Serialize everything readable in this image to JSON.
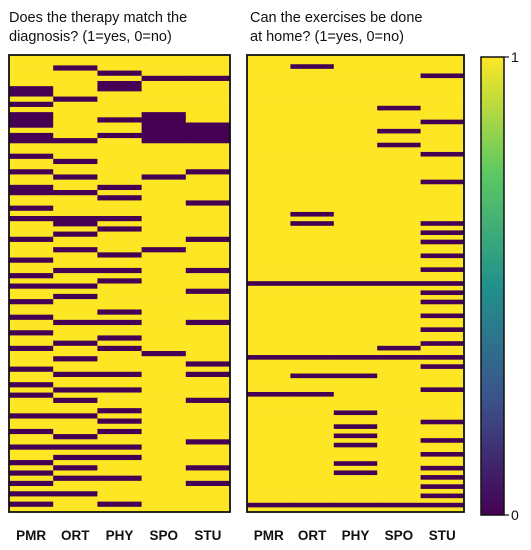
{
  "chart_data": [
    {
      "type": "heatmap",
      "title_lines": [
        "Does the therapy match the",
        "diagnosis? (1=yes, 0=no)"
      ],
      "xlabel": "",
      "ylabel": "",
      "columns": [
        "PMR",
        "ORT",
        "PHY",
        "SPO",
        "STU"
      ],
      "colormap": "viridis",
      "value_range": [
        0,
        1
      ],
      "rows": [
        [
          1,
          1,
          1,
          1,
          1
        ],
        [
          1,
          1,
          1,
          1,
          1
        ],
        [
          1,
          0,
          1,
          1,
          1
        ],
        [
          1,
          1,
          0,
          1,
          1
        ],
        [
          1,
          1,
          1,
          0,
          0
        ],
        [
          1,
          1,
          0,
          1,
          1
        ],
        [
          0,
          1,
          0,
          1,
          1
        ],
        [
          0,
          1,
          1,
          1,
          1
        ],
        [
          1,
          0,
          1,
          1,
          1
        ],
        [
          0,
          1,
          1,
          1,
          1
        ],
        [
          1,
          1,
          1,
          1,
          1
        ],
        [
          0,
          1,
          1,
          0,
          1
        ],
        [
          0,
          1,
          0,
          0,
          1
        ],
        [
          0,
          1,
          1,
          0,
          0
        ],
        [
          1,
          1,
          1,
          0,
          0
        ],
        [
          0,
          1,
          0,
          0,
          0
        ],
        [
          0,
          0,
          1,
          0,
          0
        ],
        [
          1,
          1,
          1,
          1,
          1
        ],
        [
          1,
          1,
          1,
          1,
          1
        ],
        [
          0,
          1,
          1,
          1,
          1
        ],
        [
          1,
          0,
          1,
          1,
          1
        ],
        [
          1,
          1,
          1,
          1,
          1
        ],
        [
          0,
          1,
          1,
          1,
          0
        ],
        [
          1,
          0,
          1,
          0,
          1
        ],
        [
          1,
          1,
          1,
          1,
          1
        ],
        [
          0,
          1,
          0,
          1,
          1
        ],
        [
          0,
          0,
          1,
          1,
          1
        ],
        [
          1,
          1,
          0,
          1,
          1
        ],
        [
          1,
          1,
          1,
          1,
          0
        ],
        [
          0,
          1,
          1,
          1,
          1
        ],
        [
          1,
          1,
          1,
          1,
          1
        ],
        [
          0,
          0,
          0,
          1,
          1
        ],
        [
          1,
          0,
          1,
          1,
          1
        ],
        [
          1,
          1,
          0,
          1,
          1
        ],
        [
          1,
          0,
          1,
          1,
          1
        ],
        [
          0,
          1,
          1,
          1,
          0
        ],
        [
          1,
          1,
          1,
          1,
          1
        ],
        [
          1,
          0,
          1,
          0,
          1
        ],
        [
          1,
          1,
          0,
          1,
          1
        ],
        [
          0,
          1,
          1,
          1,
          1
        ],
        [
          1,
          1,
          1,
          1,
          1
        ],
        [
          1,
          0,
          0,
          1,
          0
        ],
        [
          0,
          1,
          1,
          1,
          1
        ],
        [
          1,
          1,
          0,
          1,
          1
        ],
        [
          0,
          0,
          1,
          1,
          1
        ],
        [
          1,
          1,
          1,
          1,
          0
        ],
        [
          1,
          0,
          1,
          1,
          1
        ],
        [
          0,
          1,
          1,
          1,
          1
        ],
        [
          1,
          1,
          1,
          1,
          1
        ],
        [
          1,
          1,
          0,
          1,
          1
        ],
        [
          0,
          1,
          1,
          1,
          1
        ],
        [
          1,
          0,
          0,
          1,
          0
        ],
        [
          1,
          1,
          1,
          1,
          1
        ],
        [
          0,
          1,
          1,
          1,
          1
        ],
        [
          1,
          1,
          0,
          1,
          1
        ],
        [
          1,
          0,
          1,
          1,
          1
        ],
        [
          0,
          1,
          0,
          1,
          1
        ],
        [
          1,
          1,
          1,
          0,
          1
        ],
        [
          1,
          0,
          1,
          1,
          1
        ],
        [
          1,
          1,
          1,
          1,
          0
        ],
        [
          0,
          1,
          1,
          1,
          1
        ],
        [
          1,
          0,
          0,
          1,
          0
        ],
        [
          1,
          1,
          1,
          1,
          1
        ],
        [
          0,
          1,
          1,
          1,
          1
        ],
        [
          1,
          0,
          0,
          1,
          1
        ],
        [
          0,
          1,
          1,
          1,
          1
        ],
        [
          1,
          0,
          1,
          1,
          0
        ],
        [
          1,
          1,
          1,
          1,
          1
        ],
        [
          1,
          1,
          0,
          1,
          1
        ],
        [
          0,
          0,
          1,
          1,
          1
        ],
        [
          1,
          1,
          0,
          1,
          1
        ],
        [
          1,
          1,
          1,
          1,
          1
        ],
        [
          0,
          1,
          0,
          1,
          1
        ],
        [
          1,
          0,
          1,
          1,
          1
        ],
        [
          1,
          1,
          1,
          1,
          0
        ],
        [
          0,
          0,
          0,
          1,
          1
        ],
        [
          1,
          1,
          1,
          1,
          1
        ],
        [
          1,
          0,
          0,
          1,
          1
        ],
        [
          0,
          1,
          1,
          1,
          1
        ],
        [
          1,
          0,
          1,
          1,
          0
        ],
        [
          0,
          1,
          1,
          1,
          1
        ],
        [
          1,
          0,
          0,
          1,
          1
        ],
        [
          0,
          1,
          1,
          1,
          0
        ],
        [
          1,
          1,
          1,
          1,
          1
        ],
        [
          0,
          0,
          1,
          1,
          1
        ],
        [
          1,
          1,
          1,
          1,
          1
        ],
        [
          0,
          1,
          0,
          1,
          1
        ],
        [
          1,
          1,
          1,
          1,
          1
        ]
      ]
    },
    {
      "type": "heatmap",
      "title_lines": [
        "Can the exercises be done",
        "at home? (1=yes, 0=no)"
      ],
      "xlabel": "",
      "ylabel": "",
      "columns": [
        "PMR",
        "ORT",
        "PHY",
        "SPO",
        "STU"
      ],
      "colormap": "viridis",
      "value_range": [
        0,
        1
      ],
      "rows": [
        [
          1,
          1,
          1,
          1,
          1
        ],
        [
          1,
          1,
          1,
          1,
          1
        ],
        [
          1,
          0,
          1,
          1,
          1
        ],
        [
          1,
          1,
          1,
          1,
          1
        ],
        [
          1,
          1,
          1,
          1,
          0
        ],
        [
          1,
          1,
          1,
          1,
          1
        ],
        [
          1,
          1,
          1,
          1,
          1
        ],
        [
          1,
          1,
          1,
          1,
          1
        ],
        [
          1,
          1,
          1,
          1,
          1
        ],
        [
          1,
          1,
          1,
          1,
          1
        ],
        [
          1,
          1,
          1,
          1,
          1
        ],
        [
          1,
          1,
          1,
          0,
          1
        ],
        [
          1,
          1,
          1,
          1,
          1
        ],
        [
          1,
          1,
          1,
          1,
          1
        ],
        [
          1,
          1,
          1,
          1,
          0
        ],
        [
          1,
          1,
          1,
          1,
          1
        ],
        [
          1,
          1,
          1,
          0,
          1
        ],
        [
          1,
          1,
          1,
          1,
          1
        ],
        [
          1,
          1,
          1,
          1,
          1
        ],
        [
          1,
          1,
          1,
          0,
          1
        ],
        [
          1,
          1,
          1,
          1,
          1
        ],
        [
          1,
          1,
          1,
          1,
          0
        ],
        [
          1,
          1,
          1,
          1,
          1
        ],
        [
          1,
          1,
          1,
          1,
          1
        ],
        [
          1,
          1,
          1,
          1,
          1
        ],
        [
          1,
          1,
          1,
          1,
          1
        ],
        [
          1,
          1,
          1,
          1,
          1
        ],
        [
          1,
          1,
          1,
          1,
          0
        ],
        [
          1,
          1,
          1,
          1,
          1
        ],
        [
          1,
          1,
          1,
          1,
          1
        ],
        [
          1,
          1,
          1,
          1,
          1
        ],
        [
          1,
          1,
          1,
          1,
          1
        ],
        [
          1,
          1,
          1,
          1,
          1
        ],
        [
          1,
          1,
          1,
          1,
          1
        ],
        [
          1,
          0,
          1,
          1,
          1
        ],
        [
          1,
          1,
          1,
          1,
          1
        ],
        [
          1,
          0,
          1,
          1,
          0
        ],
        [
          1,
          1,
          1,
          1,
          1
        ],
        [
          1,
          1,
          1,
          1,
          0
        ],
        [
          1,
          1,
          1,
          1,
          1
        ],
        [
          1,
          1,
          1,
          1,
          0
        ],
        [
          1,
          1,
          1,
          1,
          1
        ],
        [
          1,
          1,
          1,
          1,
          1
        ],
        [
          1,
          1,
          1,
          1,
          0
        ],
        [
          1,
          1,
          1,
          1,
          1
        ],
        [
          1,
          1,
          1,
          1,
          1
        ],
        [
          1,
          1,
          1,
          1,
          0
        ],
        [
          1,
          1,
          1,
          1,
          1
        ],
        [
          1,
          1,
          1,
          1,
          1
        ],
        [
          0,
          0,
          0,
          0,
          0
        ],
        [
          1,
          1,
          1,
          1,
          1
        ],
        [
          1,
          1,
          1,
          1,
          0
        ],
        [
          1,
          1,
          1,
          1,
          1
        ],
        [
          1,
          1,
          1,
          1,
          0
        ],
        [
          1,
          1,
          1,
          1,
          1
        ],
        [
          1,
          1,
          1,
          1,
          1
        ],
        [
          1,
          1,
          1,
          1,
          0
        ],
        [
          1,
          1,
          1,
          1,
          1
        ],
        [
          1,
          1,
          1,
          1,
          1
        ],
        [
          1,
          1,
          1,
          1,
          0
        ],
        [
          1,
          1,
          1,
          1,
          1
        ],
        [
          1,
          1,
          1,
          1,
          1
        ],
        [
          1,
          1,
          1,
          1,
          0
        ],
        [
          1,
          1,
          1,
          0,
          1
        ],
        [
          1,
          1,
          1,
          1,
          1
        ],
        [
          0,
          0,
          0,
          0,
          0
        ],
        [
          1,
          1,
          1,
          1,
          1
        ],
        [
          1,
          1,
          1,
          1,
          0
        ],
        [
          1,
          1,
          1,
          1,
          1
        ],
        [
          1,
          0,
          0,
          1,
          1
        ],
        [
          1,
          1,
          1,
          1,
          1
        ],
        [
          1,
          1,
          1,
          1,
          1
        ],
        [
          1,
          1,
          1,
          1,
          0
        ],
        [
          0,
          0,
          1,
          1,
          1
        ],
        [
          1,
          1,
          1,
          1,
          1
        ],
        [
          1,
          1,
          1,
          1,
          1
        ],
        [
          1,
          1,
          1,
          1,
          1
        ],
        [
          1,
          1,
          0,
          1,
          1
        ],
        [
          1,
          1,
          1,
          1,
          1
        ],
        [
          1,
          1,
          1,
          1,
          0
        ],
        [
          1,
          1,
          0,
          1,
          1
        ],
        [
          1,
          1,
          1,
          1,
          1
        ],
        [
          1,
          1,
          0,
          1,
          1
        ],
        [
          1,
          1,
          1,
          1,
          0
        ],
        [
          1,
          1,
          0,
          1,
          1
        ],
        [
          1,
          1,
          1,
          1,
          1
        ],
        [
          1,
          1,
          1,
          1,
          0
        ],
        [
          1,
          1,
          1,
          1,
          1
        ],
        [
          1,
          1,
          0,
          1,
          1
        ],
        [
          1,
          1,
          1,
          1,
          0
        ],
        [
          1,
          1,
          0,
          1,
          1
        ],
        [
          1,
          1,
          1,
          1,
          0
        ],
        [
          1,
          1,
          1,
          1,
          1
        ],
        [
          1,
          1,
          1,
          1,
          0
        ],
        [
          1,
          1,
          1,
          1,
          1
        ],
        [
          1,
          1,
          1,
          1,
          0
        ],
        [
          1,
          1,
          1,
          1,
          1
        ],
        [
          0,
          0,
          0,
          0,
          0
        ],
        [
          1,
          1,
          1,
          1,
          1
        ]
      ]
    }
  ],
  "colorbar": {
    "colormap": "viridis",
    "min_label": "0",
    "max_label": "1",
    "stops": [
      "#440154",
      "#3b528b",
      "#21918c",
      "#5ec962",
      "#fde725"
    ]
  }
}
